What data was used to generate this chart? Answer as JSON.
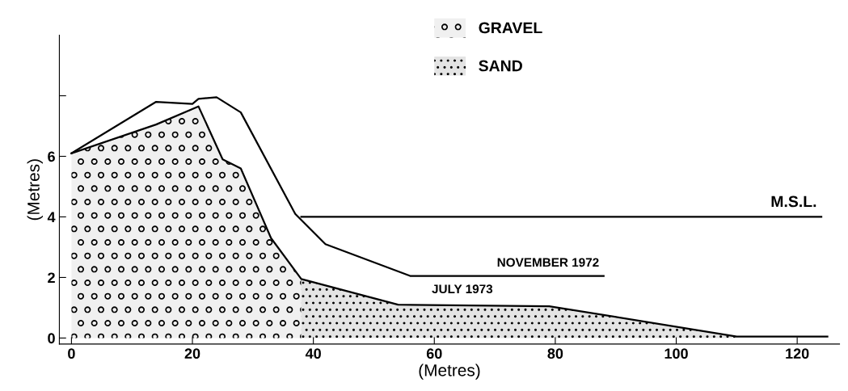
{
  "chart_data": {
    "type": "line",
    "xlabel": "(Metres)",
    "ylabel": "(Metres)",
    "series": [
      {
        "name": "GRAVEL",
        "type": "area",
        "color": "#f0f0f0",
        "x": [
          0,
          14,
          21,
          25,
          28,
          33,
          38
        ],
        "values": [
          6.1,
          7.05,
          7.65,
          5.9,
          5.6,
          3.3,
          1.95
        ]
      },
      {
        "name": "SAND",
        "type": "area",
        "color": "#e4e4e4",
        "x": [
          38,
          54,
          79,
          110
        ],
        "values": [
          1.95,
          1.1,
          1.05,
          0.05
        ]
      },
      {
        "name": "NOVEMBER 1972",
        "color": "#000000",
        "x": [
          0,
          14,
          20,
          21,
          24,
          28,
          37,
          42,
          56,
          88
        ],
        "values": [
          6.1,
          7.8,
          7.73,
          7.9,
          7.95,
          7.45,
          4.1,
          3.1,
          2.05,
          2.05
        ]
      },
      {
        "name": "JULY 1973",
        "color": "#000000",
        "x": [
          0,
          14,
          21,
          25,
          28,
          33,
          38,
          54,
          79,
          110,
          125
        ],
        "values": [
          6.1,
          7.05,
          7.65,
          5.9,
          5.6,
          3.3,
          1.95,
          1.1,
          1.05,
          0.05,
          0.05
        ]
      },
      {
        "name": "M.S.L.",
        "color": "#000000",
        "x": [
          38,
          124
        ],
        "values": [
          4,
          4
        ]
      }
    ],
    "xlim": [
      -2,
      127
    ],
    "xticks": [
      0,
      20,
      40,
      60,
      80,
      100,
      120
    ],
    "ylim": [
      -0.2,
      10
    ],
    "yticks": [
      0,
      2,
      4,
      6,
      {
        "value": 8,
        "label": null
      }
    ],
    "grid": false,
    "legend": "top"
  }
}
